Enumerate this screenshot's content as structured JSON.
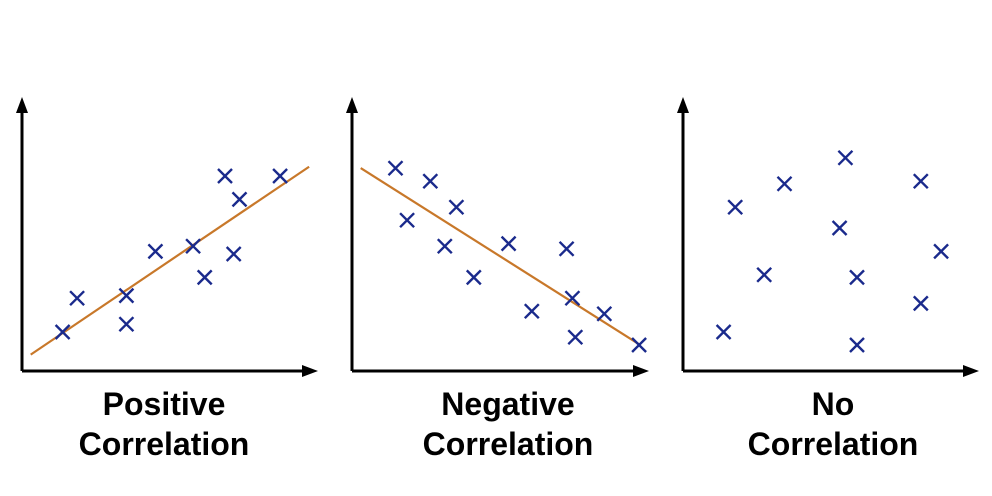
{
  "colors": {
    "axis": "#000000",
    "marker": "#1a2a8c",
    "trend": "#c8782a",
    "text": "#000000"
  },
  "chart_data": [
    {
      "type": "scatter",
      "caption_line1": "Positive",
      "caption_line2": "Correlation",
      "trend_line": true,
      "points": [
        [
          1.4,
          1.5
        ],
        [
          1.9,
          2.8
        ],
        [
          3.6,
          2.9
        ],
        [
          3.6,
          1.8
        ],
        [
          4.6,
          4.6
        ],
        [
          5.9,
          4.8
        ],
        [
          6.3,
          3.6
        ],
        [
          7.3,
          4.5
        ],
        [
          7.0,
          7.5
        ],
        [
          7.5,
          6.6
        ],
        [
          8.9,
          7.5
        ]
      ]
    },
    {
      "type": "scatter",
      "caption_line1": "Negative",
      "caption_line2": "Correlation",
      "trend_line": true,
      "points": [
        [
          1.5,
          7.8
        ],
        [
          1.9,
          5.8
        ],
        [
          2.7,
          7.3
        ],
        [
          3.2,
          4.8
        ],
        [
          3.6,
          6.3
        ],
        [
          4.2,
          3.6
        ],
        [
          5.4,
          4.9
        ],
        [
          6.2,
          2.3
        ],
        [
          7.4,
          4.7
        ],
        [
          7.6,
          2.8
        ],
        [
          7.7,
          1.3
        ],
        [
          8.7,
          2.2
        ],
        [
          9.9,
          1.0
        ]
      ]
    },
    {
      "type": "scatter",
      "caption_line1": "No",
      "caption_line2": "Correlation",
      "trend_line": false,
      "points": [
        [
          1.4,
          1.5
        ],
        [
          1.8,
          6.3
        ],
        [
          2.8,
          3.7
        ],
        [
          3.5,
          7.2
        ],
        [
          5.4,
          5.5
        ],
        [
          5.6,
          8.2
        ],
        [
          6.0,
          3.6
        ],
        [
          6.0,
          1.0
        ],
        [
          8.2,
          7.3
        ],
        [
          8.2,
          2.6
        ],
        [
          8.9,
          4.6
        ]
      ]
    }
  ]
}
